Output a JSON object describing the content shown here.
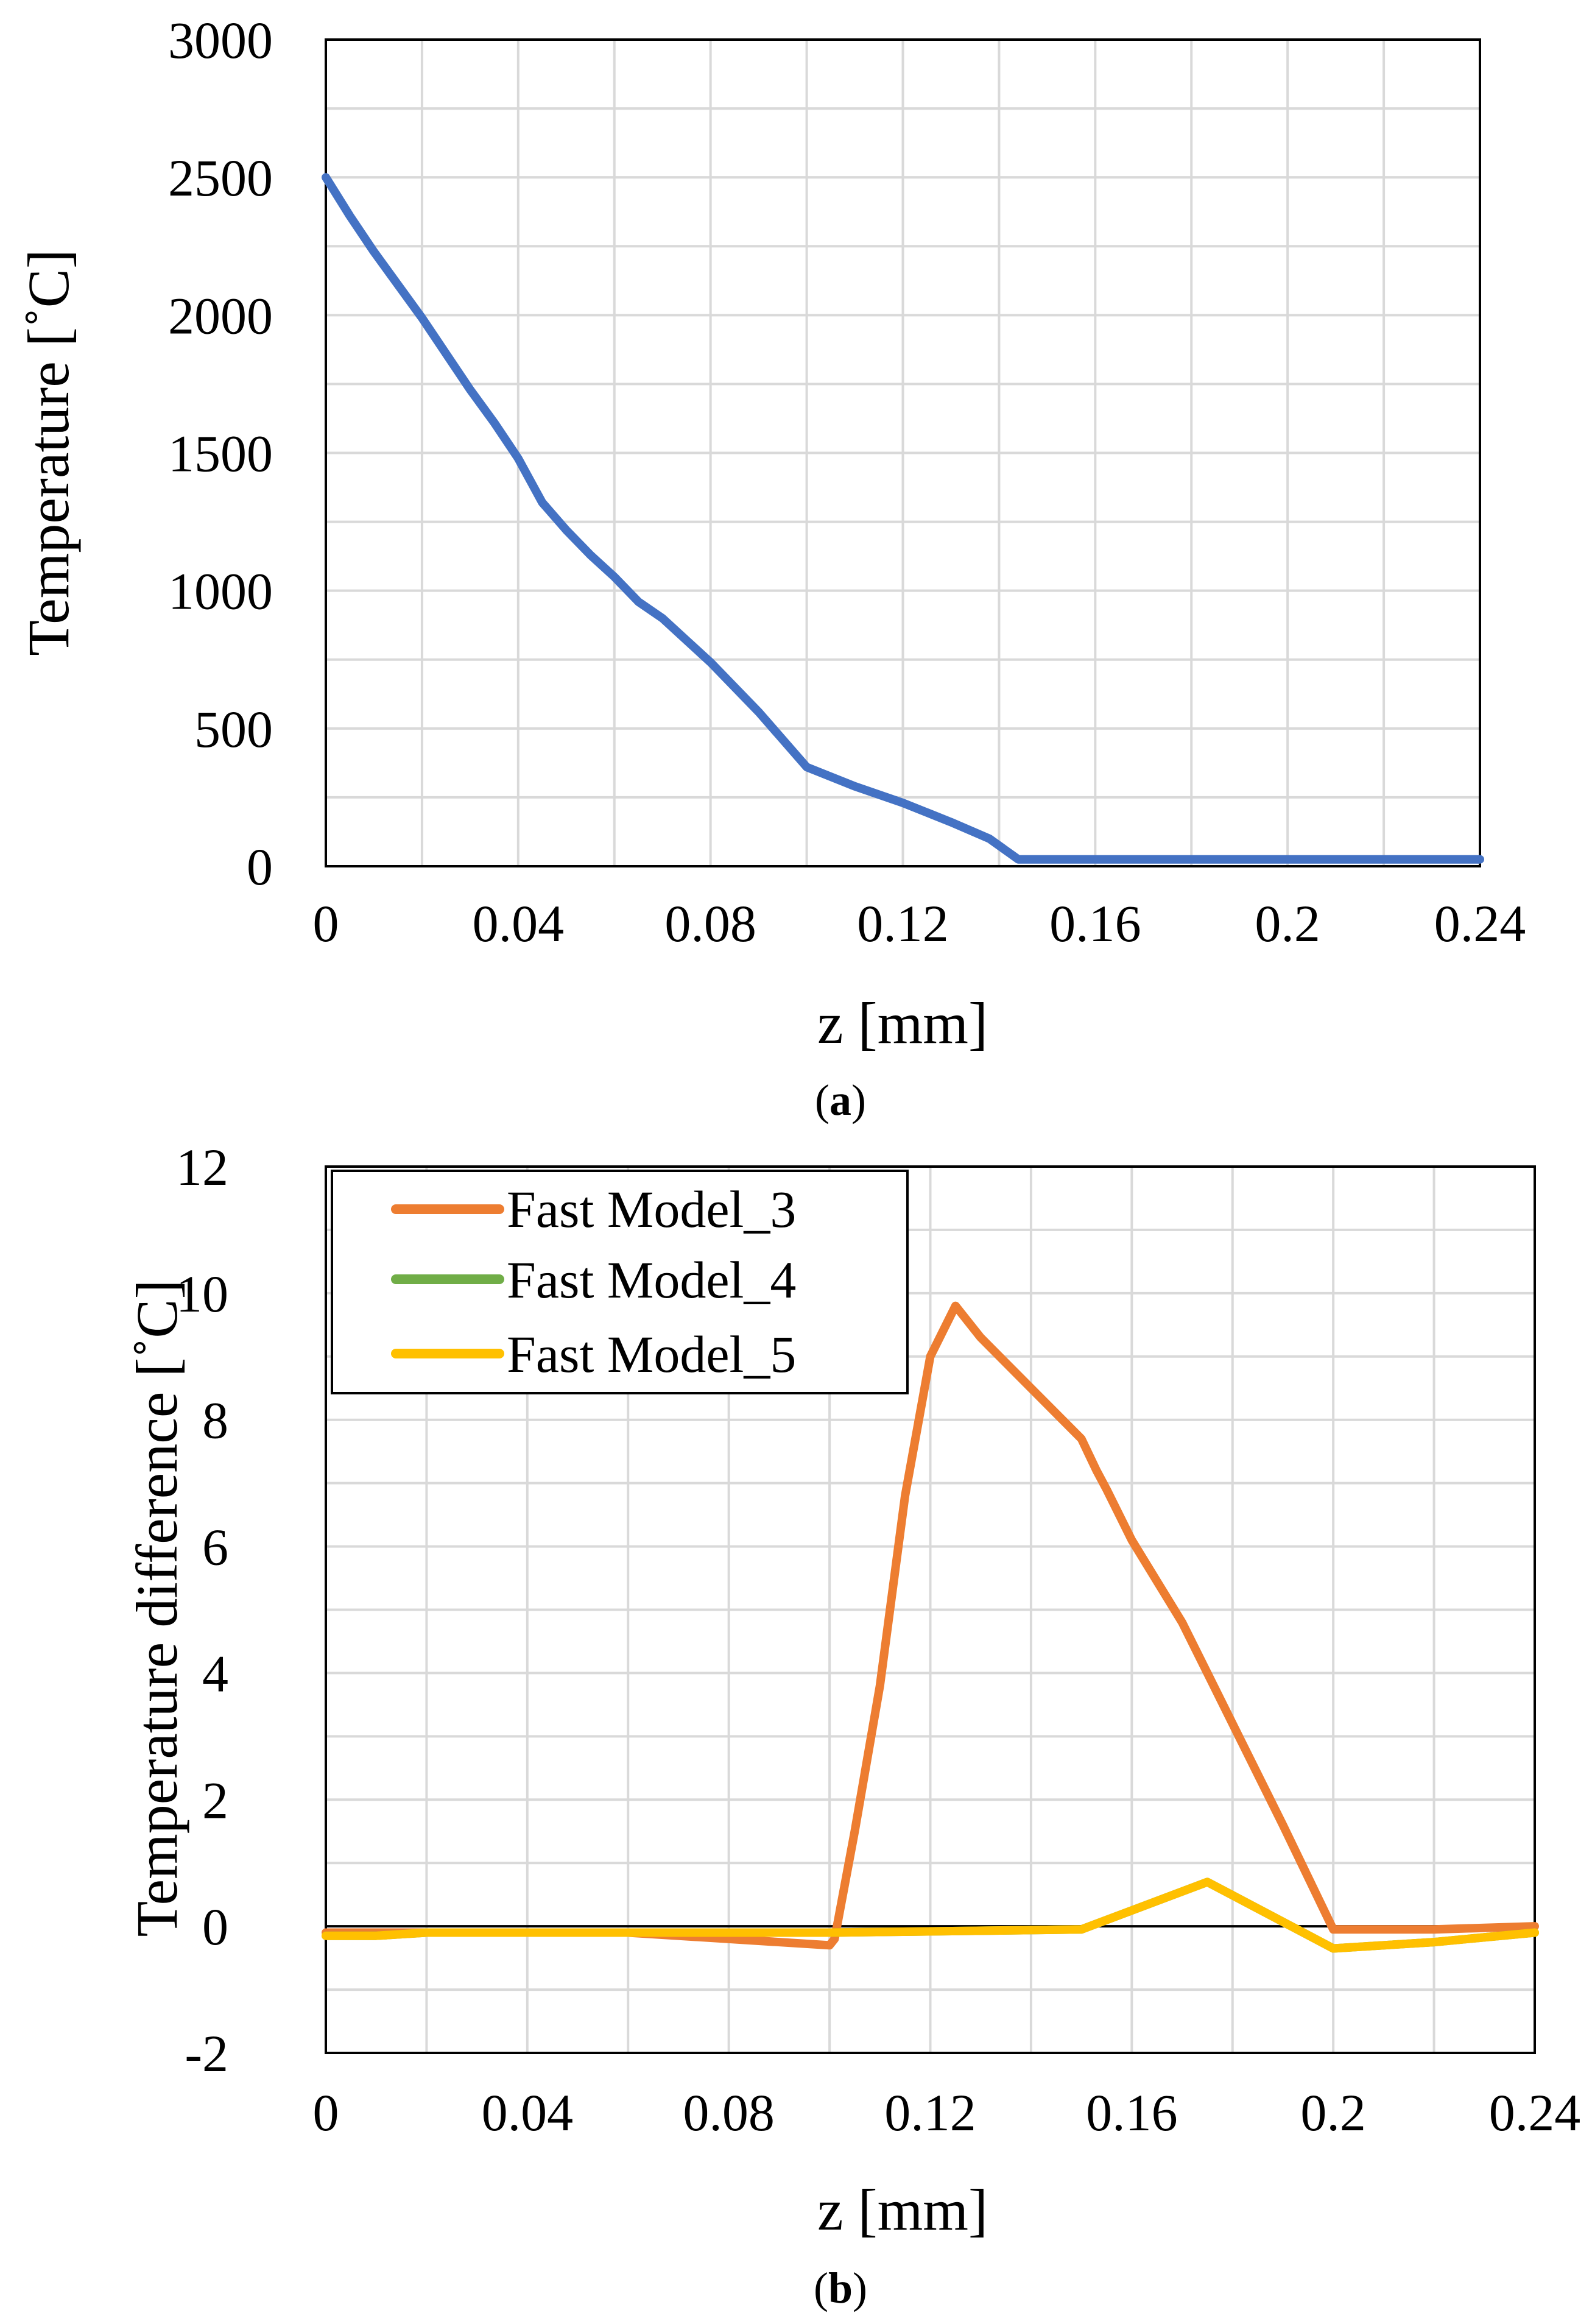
{
  "chart_data": [
    {
      "panel": "(a)",
      "panel_letter": "a",
      "type": "line",
      "title": "",
      "xlabel": "z [mm]",
      "ylabel": "Temperature [˚C]",
      "xlim": [
        0,
        0.24
      ],
      "ylim": [
        0,
        3000
      ],
      "x_ticks": [
        0,
        0.04,
        0.08,
        0.12,
        0.16,
        0.2,
        0.24
      ],
      "x_tick_labels": [
        "0",
        "0.04",
        "0.08",
        "0.12",
        "0.16",
        "0.2",
        "0.24"
      ],
      "y_ticks": [
        0,
        500,
        1000,
        1500,
        2000,
        2500,
        3000
      ],
      "y_tick_labels": [
        "0",
        "500",
        "1000",
        "1500",
        "2000",
        "2500",
        "3000"
      ],
      "grid": true,
      "legend": false,
      "series": [
        {
          "name": "Temperature",
          "color": "#4472C4",
          "x": [
            0,
            0.005,
            0.01,
            0.02,
            0.03,
            0.035,
            0.04,
            0.045,
            0.05,
            0.055,
            0.06,
            0.065,
            0.07,
            0.075,
            0.08,
            0.09,
            0.1,
            0.11,
            0.12,
            0.13,
            0.138,
            0.144,
            0.16,
            0.2,
            0.24
          ],
          "values": [
            2500,
            2360,
            2230,
            1990,
            1730,
            1610,
            1480,
            1320,
            1220,
            1130,
            1050,
            960,
            900,
            820,
            740,
            560,
            360,
            290,
            230,
            160,
            100,
            25,
            25,
            25,
            25
          ]
        }
      ]
    },
    {
      "panel": "(b)",
      "panel_letter": "b",
      "type": "line",
      "title": "",
      "xlabel": "z [mm]",
      "ylabel": "Temperature difference [˚C]",
      "xlim": [
        0,
        0.24
      ],
      "ylim": [
        -2,
        12
      ],
      "x_ticks": [
        0,
        0.04,
        0.08,
        0.12,
        0.16,
        0.2,
        0.24
      ],
      "x_tick_labels": [
        "0",
        "0.04",
        "0.08",
        "0.12",
        "0.16",
        "0.2",
        "0.24"
      ],
      "y_ticks": [
        -2,
        0,
        2,
        4,
        6,
        8,
        10,
        12
      ],
      "y_tick_labels": [
        "-2",
        "0",
        "2",
        "4",
        "6",
        "8",
        "10",
        "12"
      ],
      "grid": true,
      "legend": true,
      "legend_position": "top-left",
      "series": [
        {
          "name": "Fast Model_3",
          "color": "#ED7D31",
          "x": [
            0,
            0.02,
            0.04,
            0.06,
            0.08,
            0.1,
            0.101,
            0.105,
            0.11,
            0.115,
            0.12,
            0.125,
            0.13,
            0.14,
            0.15,
            0.153,
            0.155,
            0.16,
            0.17,
            0.175,
            0.18,
            0.19,
            0.2,
            0.22,
            0.24
          ],
          "values": [
            -0.1,
            -0.1,
            -0.1,
            -0.1,
            -0.2,
            -0.3,
            -0.2,
            1.5,
            3.8,
            6.8,
            9.0,
            9.8,
            9.3,
            8.5,
            7.7,
            7.2,
            6.9,
            6.1,
            4.8,
            4.0,
            3.2,
            1.6,
            -0.05,
            -0.05,
            0.0
          ]
        },
        {
          "name": "Fast Model_4",
          "color": "#70AD47",
          "x": [
            0,
            0.01,
            0.02,
            0.05,
            0.1,
            0.15,
            0.175,
            0.2,
            0.22,
            0.24
          ],
          "values": [
            -0.15,
            -0.15,
            -0.1,
            -0.1,
            -0.1,
            -0.05,
            0.7,
            -0.35,
            -0.25,
            -0.1
          ]
        },
        {
          "name": "Fast Model_5",
          "color": "#FFC000",
          "x": [
            0,
            0.01,
            0.02,
            0.05,
            0.1,
            0.15,
            0.175,
            0.2,
            0.22,
            0.24
          ],
          "values": [
            -0.15,
            -0.15,
            -0.1,
            -0.1,
            -0.1,
            -0.05,
            0.7,
            -0.35,
            -0.25,
            -0.1
          ]
        }
      ]
    }
  ]
}
